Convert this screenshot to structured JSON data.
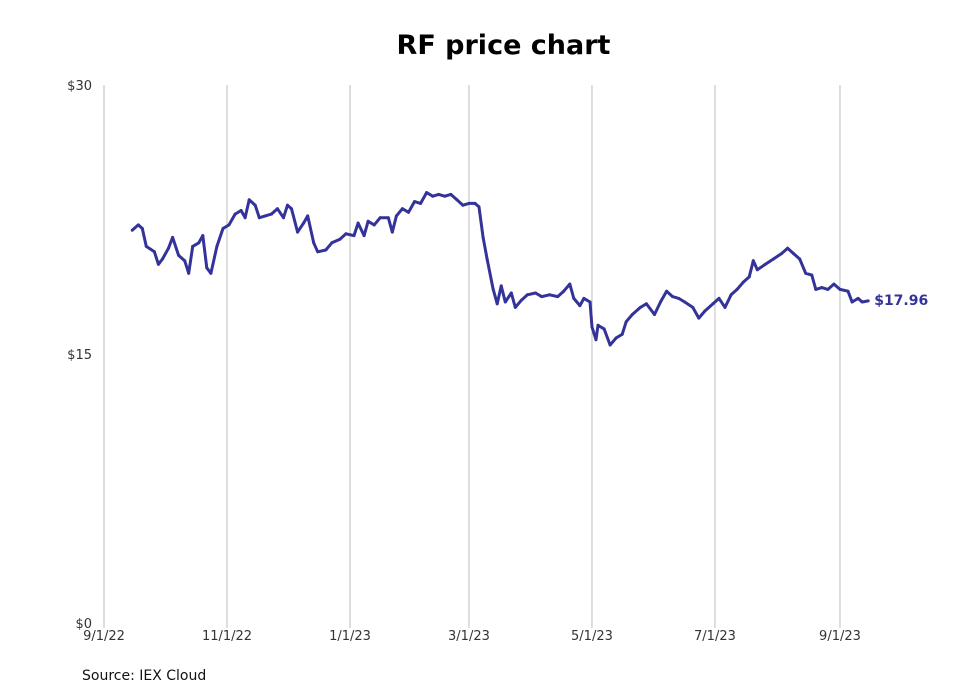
{
  "chart_data": {
    "type": "line",
    "title": "RF price chart",
    "source": "Source: IEX Cloud",
    "xlabel": "",
    "ylabel": "",
    "x_ticks": [
      "9/1/22",
      "11/1/22",
      "1/1/23",
      "3/1/23",
      "5/1/23",
      "7/1/23",
      "9/1/23"
    ],
    "y_ticks": [
      "$0",
      "$15",
      "$30"
    ],
    "ylim": [
      0,
      30
    ],
    "xlim": [
      "2022-09-01",
      "2023-09-21"
    ],
    "grid": "vertical",
    "line_color": "#333399",
    "end_label": "$17.96",
    "series": [
      {
        "points": [
          [
            "2022-09-15",
            21.9
          ],
          [
            "2022-09-18",
            22.2
          ],
          [
            "2022-09-20",
            22.0
          ],
          [
            "2022-09-22",
            21.0
          ],
          [
            "2022-09-26",
            20.7
          ],
          [
            "2022-09-28",
            20.0
          ],
          [
            "2022-09-30",
            20.3
          ],
          [
            "2022-10-03",
            20.9
          ],
          [
            "2022-10-05",
            21.5
          ],
          [
            "2022-10-08",
            20.5
          ],
          [
            "2022-10-11",
            20.2
          ],
          [
            "2022-10-13",
            19.5
          ],
          [
            "2022-10-15",
            21.0
          ],
          [
            "2022-10-18",
            21.2
          ],
          [
            "2022-10-20",
            21.6
          ],
          [
            "2022-10-22",
            19.8
          ],
          [
            "2022-10-24",
            19.5
          ],
          [
            "2022-10-27",
            21.0
          ],
          [
            "2022-10-30",
            22.0
          ],
          [
            "2022-11-02",
            22.2
          ],
          [
            "2022-11-05",
            22.8
          ],
          [
            "2022-11-08",
            23.0
          ],
          [
            "2022-11-10",
            22.6
          ],
          [
            "2022-11-12",
            23.6
          ],
          [
            "2022-11-15",
            23.3
          ],
          [
            "2022-11-17",
            22.6
          ],
          [
            "2022-11-20",
            22.7
          ],
          [
            "2022-11-23",
            22.8
          ],
          [
            "2022-11-26",
            23.1
          ],
          [
            "2022-11-29",
            22.6
          ],
          [
            "2022-12-01",
            23.3
          ],
          [
            "2022-12-03",
            23.1
          ],
          [
            "2022-12-06",
            21.8
          ],
          [
            "2022-12-09",
            22.3
          ],
          [
            "2022-12-11",
            22.7
          ],
          [
            "2022-12-14",
            21.2
          ],
          [
            "2022-12-16",
            20.7
          ],
          [
            "2022-12-20",
            20.8
          ],
          [
            "2022-12-23",
            21.2
          ],
          [
            "2022-12-27",
            21.4
          ],
          [
            "2022-12-30",
            21.7
          ],
          [
            "2023-01-03",
            21.6
          ],
          [
            "2023-01-05",
            22.3
          ],
          [
            "2023-01-08",
            21.6
          ],
          [
            "2023-01-10",
            22.4
          ],
          [
            "2023-01-13",
            22.2
          ],
          [
            "2023-01-16",
            22.6
          ],
          [
            "2023-01-20",
            22.6
          ],
          [
            "2023-01-22",
            21.8
          ],
          [
            "2023-01-24",
            22.7
          ],
          [
            "2023-01-27",
            23.1
          ],
          [
            "2023-01-30",
            22.9
          ],
          [
            "2023-02-02",
            23.5
          ],
          [
            "2023-02-05",
            23.4
          ],
          [
            "2023-02-08",
            24.0
          ],
          [
            "2023-02-11",
            23.8
          ],
          [
            "2023-02-14",
            23.9
          ],
          [
            "2023-02-17",
            23.8
          ],
          [
            "2023-02-20",
            23.9
          ],
          [
            "2023-02-23",
            23.6
          ],
          [
            "2023-02-26",
            23.3
          ],
          [
            "2023-03-01",
            23.4
          ],
          [
            "2023-03-04",
            23.4
          ],
          [
            "2023-03-06",
            23.2
          ],
          [
            "2023-03-08",
            21.5
          ],
          [
            "2023-03-10",
            20.3
          ],
          [
            "2023-03-13",
            18.6
          ],
          [
            "2023-03-15",
            17.8
          ],
          [
            "2023-03-17",
            18.8
          ],
          [
            "2023-03-19",
            17.9
          ],
          [
            "2023-03-22",
            18.4
          ],
          [
            "2023-03-24",
            17.6
          ],
          [
            "2023-03-27",
            18.0
          ],
          [
            "2023-03-30",
            18.3
          ],
          [
            "2023-04-03",
            18.4
          ],
          [
            "2023-04-06",
            18.2
          ],
          [
            "2023-04-10",
            18.3
          ],
          [
            "2023-04-14",
            18.2
          ],
          [
            "2023-04-17",
            18.5
          ],
          [
            "2023-04-20",
            18.9
          ],
          [
            "2023-04-22",
            18.1
          ],
          [
            "2023-04-25",
            17.7
          ],
          [
            "2023-04-27",
            18.1
          ],
          [
            "2023-04-30",
            17.9
          ],
          [
            "2023-05-01",
            16.5
          ],
          [
            "2023-05-03",
            15.8
          ],
          [
            "2023-05-04",
            16.6
          ],
          [
            "2023-05-07",
            16.4
          ],
          [
            "2023-05-10",
            15.5
          ],
          [
            "2023-05-13",
            15.9
          ],
          [
            "2023-05-16",
            16.1
          ],
          [
            "2023-05-18",
            16.8
          ],
          [
            "2023-05-21",
            17.2
          ],
          [
            "2023-05-25",
            17.6
          ],
          [
            "2023-05-28",
            17.8
          ],
          [
            "2023-06-01",
            17.2
          ],
          [
            "2023-06-04",
            17.9
          ],
          [
            "2023-06-07",
            18.5
          ],
          [
            "2023-06-10",
            18.2
          ],
          [
            "2023-06-13",
            18.1
          ],
          [
            "2023-06-16",
            17.9
          ],
          [
            "2023-06-20",
            17.6
          ],
          [
            "2023-06-23",
            17.0
          ],
          [
            "2023-06-26",
            17.4
          ],
          [
            "2023-06-30",
            17.8
          ],
          [
            "2023-07-03",
            18.1
          ],
          [
            "2023-07-06",
            17.6
          ],
          [
            "2023-07-09",
            18.3
          ],
          [
            "2023-07-12",
            18.6
          ],
          [
            "2023-07-15",
            19.0
          ],
          [
            "2023-07-18",
            19.3
          ],
          [
            "2023-07-20",
            20.2
          ],
          [
            "2023-07-22",
            19.7
          ],
          [
            "2023-07-26",
            20.0
          ],
          [
            "2023-07-30",
            20.3
          ],
          [
            "2023-08-03",
            20.6
          ],
          [
            "2023-08-06",
            20.9
          ],
          [
            "2023-08-09",
            20.6
          ],
          [
            "2023-08-12",
            20.3
          ],
          [
            "2023-08-15",
            19.5
          ],
          [
            "2023-08-18",
            19.4
          ],
          [
            "2023-08-20",
            18.6
          ],
          [
            "2023-08-23",
            18.7
          ],
          [
            "2023-08-26",
            18.6
          ],
          [
            "2023-08-29",
            18.9
          ],
          [
            "2023-09-01",
            18.6
          ],
          [
            "2023-09-05",
            18.5
          ],
          [
            "2023-09-07",
            17.9
          ],
          [
            "2023-09-10",
            18.1
          ],
          [
            "2023-09-12",
            17.9
          ],
          [
            "2023-09-15",
            17.96
          ]
        ]
      }
    ]
  }
}
